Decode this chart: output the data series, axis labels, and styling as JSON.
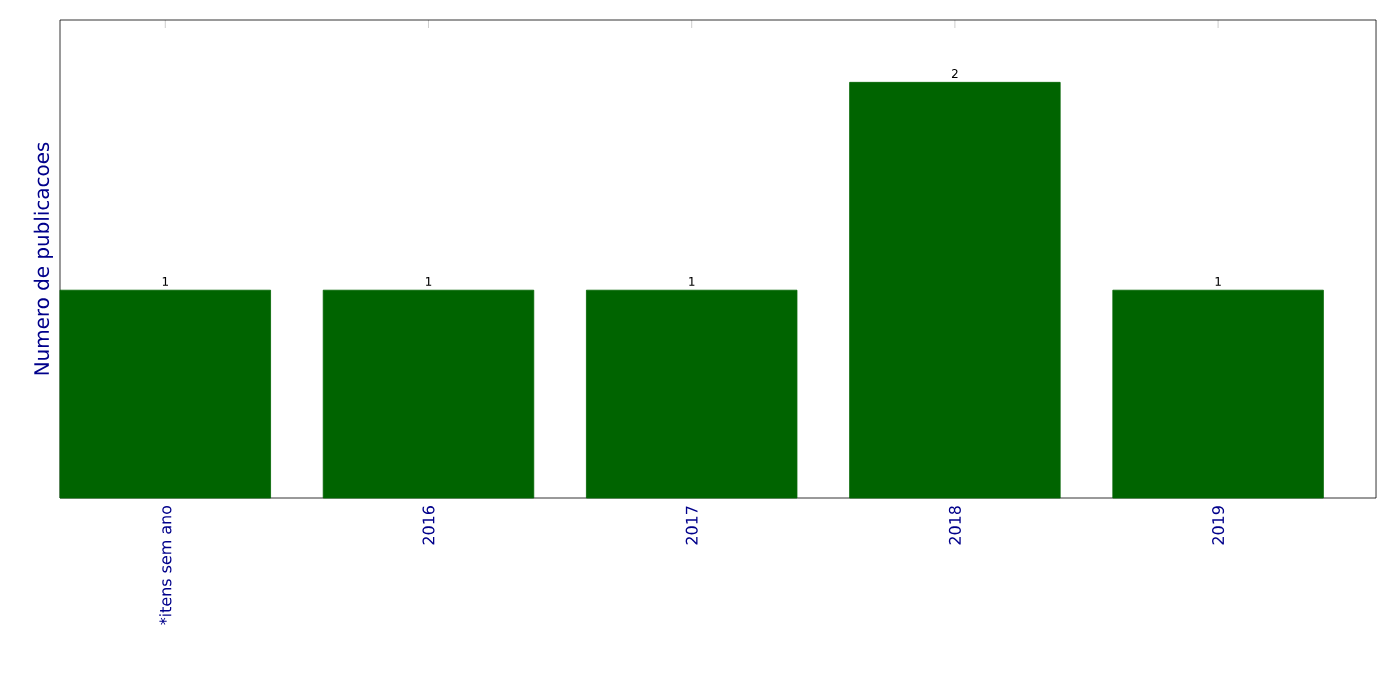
{
  "chart_data": {
    "type": "bar",
    "ylabel": "Numero de publicacoes",
    "categories": [
      "*itens sem ano",
      "2016",
      "2017",
      "2018",
      "2019"
    ],
    "values": [
      1,
      1,
      1,
      2,
      1
    ],
    "color": "#006400",
    "ylim": [
      0,
      2.3
    ],
    "tick_labels": "x",
    "data_labels": true
  }
}
